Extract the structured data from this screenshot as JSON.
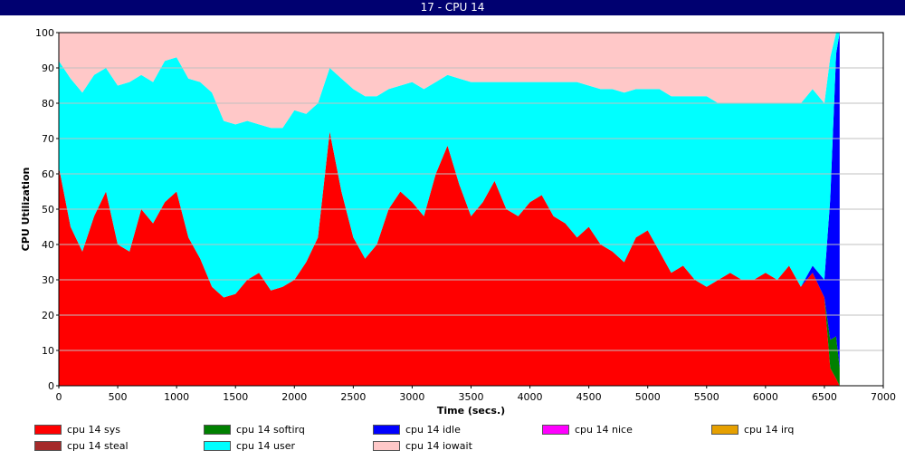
{
  "window": {
    "title": "17 - CPU 14"
  },
  "chart_data": {
    "type": "area",
    "stacked": true,
    "title": "",
    "xlabel": "Time (secs.)",
    "ylabel": "CPU Utilization",
    "xlim": [
      0,
      7000
    ],
    "ylim": [
      0,
      100
    ],
    "x_ticks": [
      0,
      500,
      1000,
      1500,
      2000,
      2500,
      3000,
      3500,
      4000,
      4500,
      5000,
      5500,
      6000,
      6500,
      7000
    ],
    "y_ticks": [
      0,
      10,
      20,
      30,
      40,
      50,
      60,
      70,
      80,
      90,
      100
    ],
    "grid": "horizontal",
    "legend_position": "bottom",
    "x": [
      0,
      100,
      200,
      300,
      400,
      500,
      600,
      700,
      800,
      900,
      1000,
      1100,
      1200,
      1300,
      1400,
      1500,
      1600,
      1700,
      1800,
      1900,
      2000,
      2100,
      2200,
      2300,
      2400,
      2500,
      2600,
      2700,
      2800,
      2900,
      3000,
      3100,
      3200,
      3300,
      3400,
      3500,
      3600,
      3700,
      3800,
      3900,
      4000,
      4100,
      4200,
      4300,
      4400,
      4500,
      4600,
      4700,
      4800,
      4900,
      5000,
      5100,
      5200,
      5300,
      5400,
      5500,
      5600,
      5700,
      5800,
      5900,
      6000,
      6100,
      6200,
      6300,
      6400,
      6500,
      6550,
      6600,
      6630
    ],
    "series": [
      {
        "name": "cpu 14 sys",
        "color": "#ff0000",
        "values": [
          62,
          45,
          38,
          48,
          55,
          40,
          38,
          50,
          46,
          52,
          55,
          42,
          36,
          28,
          25,
          26,
          30,
          32,
          27,
          28,
          30,
          35,
          42,
          72,
          55,
          42,
          36,
          40,
          50,
          55,
          52,
          48,
          60,
          68,
          57,
          48,
          52,
          58,
          50,
          48,
          52,
          54,
          48,
          46,
          42,
          45,
          40,
          38,
          35,
          42,
          44,
          38,
          32,
          34,
          30,
          28,
          30,
          32,
          30,
          30,
          32,
          30,
          34,
          28,
          32,
          25,
          5,
          2,
          0
        ]
      },
      {
        "name": "cpu 14 softirq",
        "color": "#008000",
        "values": [
          0,
          0,
          0,
          0,
          0,
          0,
          0,
          0,
          0,
          0,
          0,
          0,
          0,
          0,
          0,
          0,
          0,
          0,
          0,
          0,
          0,
          0,
          0,
          0,
          0,
          0,
          0,
          0,
          0,
          0,
          0,
          0,
          0,
          0,
          0,
          0,
          0,
          0,
          0,
          0,
          0,
          0,
          0,
          0,
          0,
          0,
          0,
          0,
          0,
          0,
          0,
          0,
          0,
          0,
          0,
          0,
          0,
          0,
          0,
          0,
          0,
          0,
          0,
          0,
          0,
          0,
          8,
          12,
          5
        ]
      },
      {
        "name": "cpu 14 idle",
        "color": "#0000ff",
        "values": [
          0,
          0,
          0,
          0,
          0,
          0,
          0,
          0,
          0,
          0,
          0,
          0,
          0,
          0,
          0,
          0,
          0,
          0,
          0,
          0,
          0,
          0,
          0,
          0,
          0,
          0,
          0,
          0,
          0,
          0,
          0,
          0,
          0,
          0,
          0,
          0,
          0,
          0,
          0,
          0,
          0,
          0,
          0,
          0,
          0,
          0,
          0,
          0,
          0,
          0,
          0,
          0,
          0,
          0,
          0,
          0,
          0,
          0,
          0,
          0,
          0,
          0,
          0,
          0,
          2,
          5,
          40,
          80,
          95
        ]
      },
      {
        "name": "cpu 14 nice",
        "color": "#ff00ff",
        "values": [
          0,
          0,
          0,
          0,
          0,
          0,
          0,
          0,
          0,
          0,
          0,
          0,
          0,
          0,
          0,
          0,
          0,
          0,
          0,
          0,
          0,
          0,
          0,
          0,
          0,
          0,
          0,
          0,
          0,
          0,
          0,
          0,
          0,
          0,
          0,
          0,
          0,
          0,
          0,
          0,
          0,
          0,
          0,
          0,
          0,
          0,
          0,
          0,
          0,
          0,
          0,
          0,
          0,
          0,
          0,
          0,
          0,
          0,
          0,
          0,
          0,
          0,
          0,
          0,
          0,
          0,
          0,
          0,
          0
        ]
      },
      {
        "name": "cpu 14 irq",
        "color": "#e6a000",
        "values": [
          0,
          0,
          0,
          0,
          0,
          0,
          0,
          0,
          0,
          0,
          0,
          0,
          0,
          0,
          0,
          0,
          0,
          0,
          0,
          0,
          0,
          0,
          0,
          0,
          0,
          0,
          0,
          0,
          0,
          0,
          0,
          0,
          0,
          0,
          0,
          0,
          0,
          0,
          0,
          0,
          0,
          0,
          0,
          0,
          0,
          0,
          0,
          0,
          0,
          0,
          0,
          0,
          0,
          0,
          0,
          0,
          0,
          0,
          0,
          0,
          0,
          0,
          0,
          0,
          0,
          0,
          0,
          0,
          0
        ]
      },
      {
        "name": "cpu 14 steal",
        "color": "#a52a2a",
        "values": [
          0,
          0,
          0,
          0,
          0,
          0,
          0,
          0,
          0,
          0,
          0,
          0,
          0,
          0,
          0,
          0,
          0,
          0,
          0,
          0,
          0,
          0,
          0,
          0,
          0,
          0,
          0,
          0,
          0,
          0,
          0,
          0,
          0,
          0,
          0,
          0,
          0,
          0,
          0,
          0,
          0,
          0,
          0,
          0,
          0,
          0,
          0,
          0,
          0,
          0,
          0,
          0,
          0,
          0,
          0,
          0,
          0,
          0,
          0,
          0,
          0,
          0,
          0,
          0,
          0,
          0,
          0,
          0,
          0
        ]
      },
      {
        "name": "cpu 14 user",
        "color": "#00ffff",
        "values": [
          30,
          42,
          45,
          40,
          35,
          45,
          48,
          38,
          40,
          40,
          38,
          45,
          50,
          55,
          50,
          48,
          45,
          42,
          46,
          45,
          48,
          42,
          38,
          18,
          32,
          42,
          46,
          42,
          34,
          30,
          34,
          36,
          26,
          20,
          30,
          38,
          34,
          28,
          36,
          38,
          34,
          32,
          38,
          40,
          44,
          40,
          44,
          46,
          48,
          42,
          40,
          46,
          50,
          48,
          52,
          54,
          50,
          48,
          50,
          50,
          48,
          50,
          46,
          52,
          50,
          50,
          40,
          6,
          0
        ]
      },
      {
        "name": "cpu 14 iowait",
        "color": "#ffc8c8",
        "values": [
          8,
          13,
          17,
          12,
          10,
          15,
          14,
          12,
          14,
          8,
          7,
          13,
          14,
          17,
          25,
          26,
          25,
          26,
          27,
          27,
          22,
          23,
          20,
          10,
          13,
          16,
          18,
          18,
          16,
          15,
          14,
          16,
          14,
          12,
          13,
          14,
          14,
          14,
          14,
          14,
          14,
          14,
          14,
          14,
          14,
          15,
          16,
          16,
          17,
          16,
          16,
          16,
          18,
          18,
          18,
          18,
          20,
          20,
          20,
          20,
          20,
          20,
          20,
          20,
          16,
          20,
          7,
          0,
          0
        ]
      }
    ]
  },
  "legend": {
    "items": [
      {
        "label": "cpu 14 sys",
        "color": "#ff0000"
      },
      {
        "label": "cpu 14 softirq",
        "color": "#008000"
      },
      {
        "label": "cpu 14 idle",
        "color": "#0000ff"
      },
      {
        "label": "cpu 14 nice",
        "color": "#ff00ff"
      },
      {
        "label": "cpu 14 irq",
        "color": "#e6a000"
      },
      {
        "label": "cpu 14 steal",
        "color": "#a52a2a"
      },
      {
        "label": "cpu 14 user",
        "color": "#00ffff"
      },
      {
        "label": "cpu 14 iowait",
        "color": "#ffc8c8"
      }
    ]
  }
}
